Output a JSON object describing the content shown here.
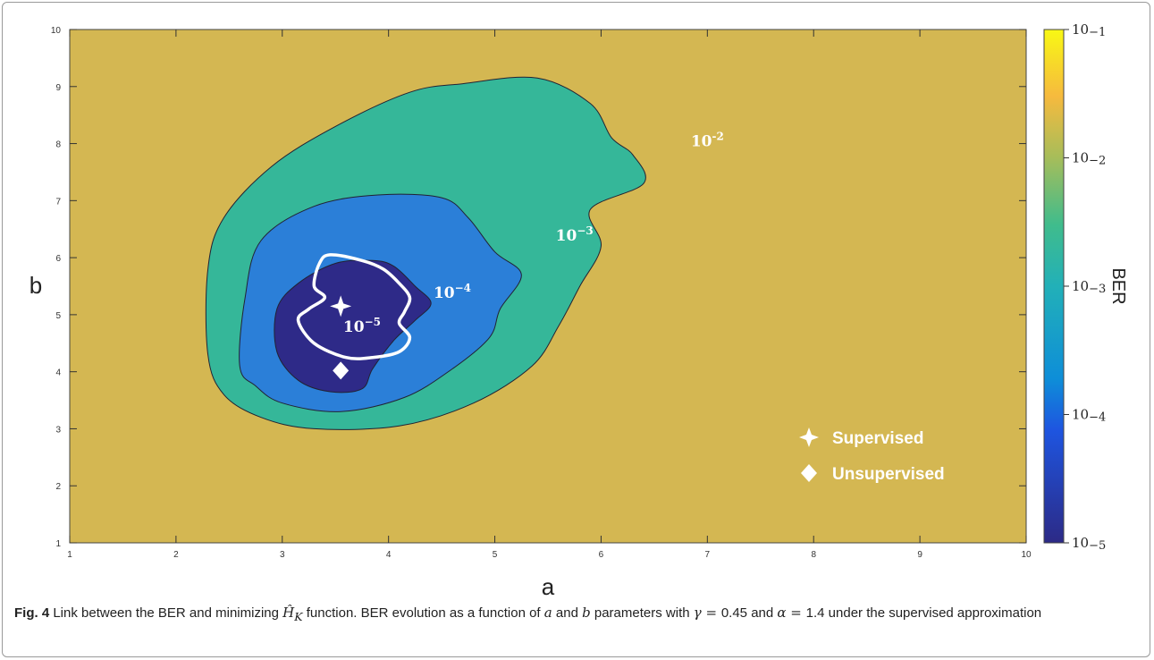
{
  "chart_data": {
    "type": "heatmap",
    "subtype": "filled-contour",
    "xlabel": "a",
    "ylabel": "b",
    "xlim": [
      1,
      10
    ],
    "ylim": [
      1,
      10
    ],
    "x_ticks": [
      "1",
      "2",
      "3",
      "4",
      "5",
      "6",
      "7",
      "8",
      "9",
      "10"
    ],
    "y_ticks": [
      "1",
      "2",
      "3",
      "4",
      "5",
      "6",
      "7",
      "8",
      "9",
      "10"
    ],
    "colorbar": {
      "label": "BER",
      "scale": "log",
      "range": [
        "1e-5",
        "1e-1"
      ],
      "ticks": [
        {
          "base": "10",
          "exp": "−1"
        },
        {
          "base": "10",
          "exp": "−2"
        },
        {
          "base": "10",
          "exp": "−3"
        },
        {
          "base": "10",
          "exp": "−4"
        },
        {
          "base": "10",
          "exp": "−5"
        }
      ]
    },
    "levels": [
      {
        "label_base": "10",
        "label_exp": "-2",
        "color": "#d4b752"
      },
      {
        "label_base": "10",
        "label_exp": "−3",
        "color": "#35b799"
      },
      {
        "label_base": "10",
        "label_exp": "−4",
        "color": "#2b7fd8"
      },
      {
        "label_base": "10",
        "label_exp": "−5",
        "color": "#2e2a88"
      }
    ],
    "regions": [
      {
        "level": "1e-3",
        "points": [
          [
            2.3,
            4.3
          ],
          [
            2.3,
            5.8
          ],
          [
            2.45,
            6.7
          ],
          [
            2.9,
            7.6
          ],
          [
            3.5,
            8.3
          ],
          [
            4.2,
            8.9
          ],
          [
            4.7,
            9.05
          ],
          [
            5.4,
            9.15
          ],
          [
            5.9,
            8.7
          ],
          [
            6.1,
            8.1
          ],
          [
            6.3,
            7.8
          ],
          [
            6.4,
            7.3
          ],
          [
            5.9,
            6.85
          ],
          [
            6.0,
            6.2
          ],
          [
            5.8,
            5.5
          ],
          [
            5.6,
            4.8
          ],
          [
            5.35,
            4.1
          ],
          [
            4.8,
            3.45
          ],
          [
            4.1,
            3.05
          ],
          [
            3.3,
            3.0
          ],
          [
            2.8,
            3.2
          ],
          [
            2.45,
            3.6
          ]
        ]
      },
      {
        "level": "1e-4",
        "points": [
          [
            2.6,
            4.1
          ],
          [
            2.65,
            5.3
          ],
          [
            2.8,
            6.3
          ],
          [
            3.3,
            6.9
          ],
          [
            3.9,
            7.1
          ],
          [
            4.5,
            7.05
          ],
          [
            4.75,
            6.7
          ],
          [
            5.0,
            6.1
          ],
          [
            5.25,
            5.7
          ],
          [
            5.05,
            5.1
          ],
          [
            4.95,
            4.6
          ],
          [
            4.6,
            4.05
          ],
          [
            4.15,
            3.55
          ],
          [
            3.55,
            3.3
          ],
          [
            3.0,
            3.45
          ],
          [
            2.75,
            3.75
          ]
        ]
      },
      {
        "level": "1e-5",
        "points": [
          [
            2.95,
            4.35
          ],
          [
            2.95,
            5.1
          ],
          [
            3.15,
            5.55
          ],
          [
            3.5,
            5.9
          ],
          [
            3.85,
            5.95
          ],
          [
            4.05,
            5.85
          ],
          [
            4.25,
            5.5
          ],
          [
            4.4,
            5.2
          ],
          [
            4.25,
            4.9
          ],
          [
            4.05,
            4.55
          ],
          [
            3.85,
            4.05
          ],
          [
            3.75,
            3.7
          ],
          [
            3.45,
            3.65
          ],
          [
            3.15,
            3.85
          ]
        ]
      }
    ],
    "minimum_contour": {
      "color": "#ffffff",
      "points": [
        [
          3.3,
          5.5
        ],
        [
          3.35,
          5.9
        ],
        [
          3.45,
          6.05
        ],
        [
          3.75,
          5.95
        ],
        [
          3.95,
          5.8
        ],
        [
          4.1,
          5.55
        ],
        [
          4.2,
          5.3
        ],
        [
          4.15,
          5.05
        ],
        [
          4.1,
          4.85
        ],
        [
          4.2,
          4.6
        ],
        [
          4.1,
          4.35
        ],
        [
          3.85,
          4.25
        ],
        [
          3.6,
          4.25
        ],
        [
          3.3,
          4.5
        ],
        [
          3.15,
          4.9
        ],
        [
          3.25,
          5.1
        ],
        [
          3.4,
          5.3
        ]
      ]
    },
    "annotations": [
      {
        "text_base": "10",
        "text_exp": "-2",
        "x": 7.0,
        "y": 7.95
      },
      {
        "text_base": "10",
        "text_exp": "−3",
        "x": 5.75,
        "y": 6.3
      },
      {
        "text_base": "10",
        "text_exp": "−4",
        "x": 4.6,
        "y": 5.3
      },
      {
        "text_base": "10",
        "text_exp": "−5",
        "x": 3.75,
        "y": 4.7
      }
    ],
    "points": [
      {
        "name": "Supervised",
        "x": 3.55,
        "y": 5.15,
        "marker": "star"
      },
      {
        "name": "Unsupervised",
        "x": 3.55,
        "y": 4.02,
        "marker": "diamond"
      }
    ],
    "legend": {
      "placement": "bottom-right"
    }
  },
  "caption": {
    "figure_label": "Fig. 4",
    "text_1": " Link between the BER and minimizing ",
    "hk_symbol": "Ĥ",
    "hk_sub": "K",
    "text_2": " function. BER evolution as a function of ",
    "var_a": "a",
    "text_3": " and ",
    "var_b": "b",
    "text_4": " parameters with ",
    "gamma_expr": "γ = ",
    "gamma_val": "0.45",
    "text_5": " and ",
    "alpha_expr": "α = ",
    "alpha_val": "1.4",
    "text_6": " under the supervised approximation"
  }
}
